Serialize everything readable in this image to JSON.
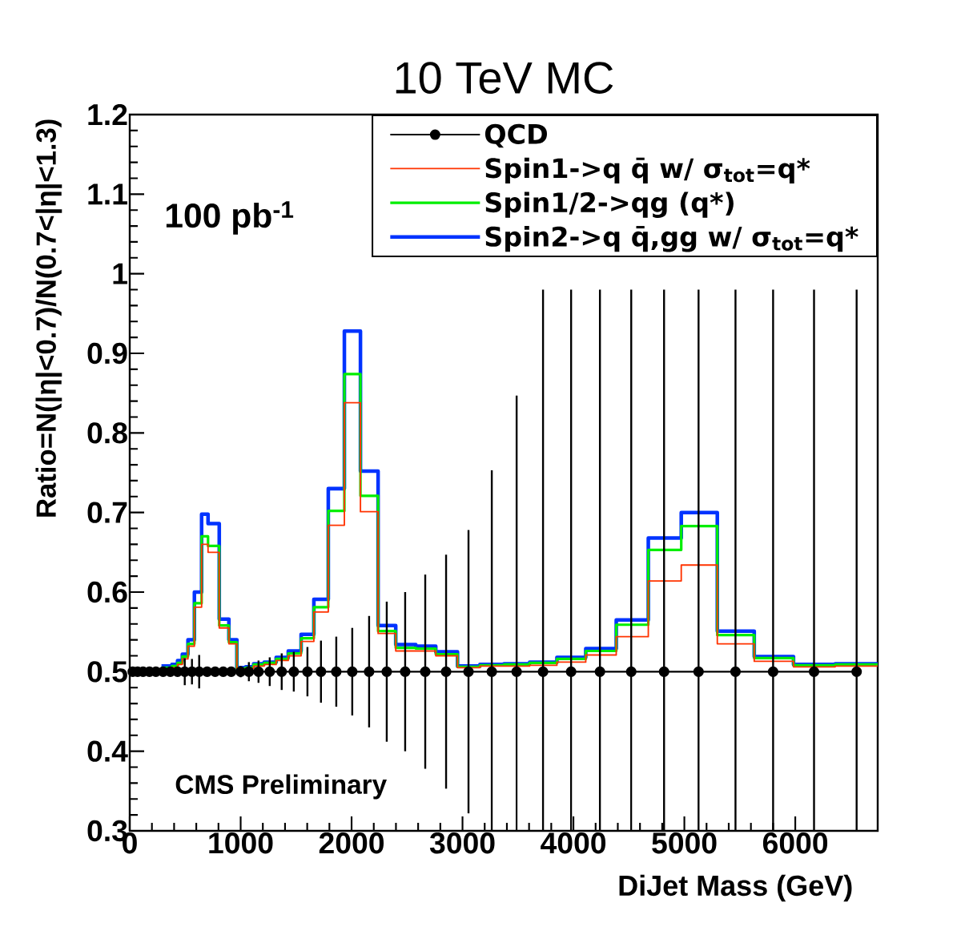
{
  "chart_data": {
    "type": "histogram",
    "title": "10 TeV MC",
    "xlabel": "DiJet Mass (GeV)",
    "ylabel": "Ratio=N(|η|<0.7)/N(0.7<|η|<1.3)",
    "annotations": [
      "100 pb$^{-1}$",
      "CMS Preliminary"
    ],
    "xlim": [
      0,
      6743
    ],
    "ylim": [
      0.3,
      1.2
    ],
    "xticks": [
      0,
      1000,
      2000,
      3000,
      4000,
      5000,
      6000
    ],
    "yticks": [
      0.3,
      0.4,
      0.5,
      0.6,
      0.7,
      0.8,
      0.9,
      1,
      1.1,
      1.2
    ],
    "legend": "top right",
    "bins": [
      286,
      380,
      431,
      474,
      525,
      583,
      648,
      706,
      807,
      894,
      966,
      1046,
      1117,
      1212,
      1320,
      1429,
      1545,
      1660,
      1790,
      1935,
      2080,
      2239,
      2398,
      2579,
      2759,
      2955,
      3157,
      3374,
      3605,
      3851,
      4111,
      4386,
      4675,
      4972,
      5297,
      5630,
      5984,
      6360,
      6743
    ],
    "series": [
      {
        "name": "QCD",
        "type": "line",
        "marker": "circle",
        "color": "#000000",
        "x": [
          27,
          71,
          120,
          178,
          236,
          301,
          366,
          431,
          496,
          561,
          626,
          698,
          770,
          843,
          915,
          1000,
          1074,
          1161,
          1262,
          1370,
          1479,
          1602,
          1724,
          1862,
          2006,
          2158,
          2317,
          2483,
          2664,
          2852,
          3054,
          3264,
          3488,
          3726,
          3979,
          4239,
          4521,
          4817,
          5128,
          5461,
          5800,
          6169,
          6553
        ],
        "values": [
          0.5,
          0.5,
          0.5,
          0.5,
          0.5,
          0.5,
          0.5,
          0.5,
          0.5,
          0.5,
          0.5,
          0.5,
          0.5,
          0.5,
          0.5,
          0.5,
          0.5,
          0.5,
          0.5,
          0.5,
          0.5,
          0.5,
          0.5,
          0.5,
          0.5,
          0.5,
          0.5,
          0.5,
          0.5,
          0.5,
          0.5,
          0.5,
          0.5,
          0.5,
          0.5,
          0.5,
          0.5,
          0.5,
          0.5,
          0.5,
          0.5,
          0.5,
          0.5
        ],
        "errors": [
          null,
          null,
          null,
          null,
          null,
          null,
          null,
          0.005,
          0.017,
          0.016,
          0.021,
          null,
          null,
          null,
          null,
          0.007,
          0.012,
          0.014,
          0.018,
          0.023,
          0.025,
          0.031,
          0.039,
          0.044,
          0.055,
          0.07,
          0.088,
          0.1,
          0.122,
          0.147,
          0.178,
          [
            0.3,
            0.753
          ],
          [
            0.3,
            0.847
          ],
          [
            0.3,
            0.98
          ],
          [
            0.3,
            0.98
          ],
          [
            0.3,
            0.98
          ],
          [
            0.3,
            0.98
          ],
          [
            0.3,
            0.98
          ],
          [
            0.3,
            0.98
          ],
          [
            0.3,
            0.98
          ],
          [
            0.3,
            0.98
          ],
          [
            0.3,
            0.98
          ],
          [
            0.3,
            0.98
          ]
        ]
      },
      {
        "name": "Spin1->q q̄ w/ σ$_{tot}$=q*",
        "color": "#ff3300",
        "values": [
          0.503,
          0.505,
          0.509,
          0.516,
          0.532,
          0.581,
          0.66,
          0.65,
          0.555,
          0.535,
          0.503,
          0.504,
          0.507,
          0.509,
          0.514,
          0.52,
          0.538,
          0.575,
          0.684,
          0.838,
          0.701,
          0.548,
          0.526,
          0.526,
          0.52,
          0.505,
          0.507,
          0.507,
          0.508,
          0.512,
          0.521,
          0.544,
          0.614,
          0.634,
          0.535,
          0.513,
          0.506,
          0.507
        ]
      },
      {
        "name": "Spin1/2->qg (q*)",
        "color": "#00ee00",
        "values": [
          0.505,
          0.507,
          0.511,
          0.519,
          0.535,
          0.586,
          0.67,
          0.658,
          0.558,
          0.537,
          0.504,
          0.505,
          0.509,
          0.511,
          0.516,
          0.523,
          0.542,
          0.581,
          0.702,
          0.874,
          0.721,
          0.551,
          0.53,
          0.529,
          0.522,
          0.506,
          0.508,
          0.509,
          0.511,
          0.516,
          0.526,
          0.559,
          0.653,
          0.683,
          0.546,
          0.517,
          0.508,
          0.509
        ]
      },
      {
        "name": "Spin2->q q̄,gg w/ σ$_{tot}$=q*",
        "color": "#0033ff",
        "values": [
          0.507,
          0.509,
          0.514,
          0.522,
          0.54,
          0.6,
          0.698,
          0.686,
          0.566,
          0.54,
          0.505,
          0.506,
          0.51,
          0.512,
          0.518,
          0.526,
          0.547,
          0.591,
          0.73,
          0.928,
          0.752,
          0.558,
          0.534,
          0.532,
          0.525,
          0.507,
          0.509,
          0.51,
          0.512,
          0.518,
          0.529,
          0.565,
          0.668,
          0.7,
          0.551,
          0.519,
          0.509,
          0.51
        ]
      }
    ]
  }
}
